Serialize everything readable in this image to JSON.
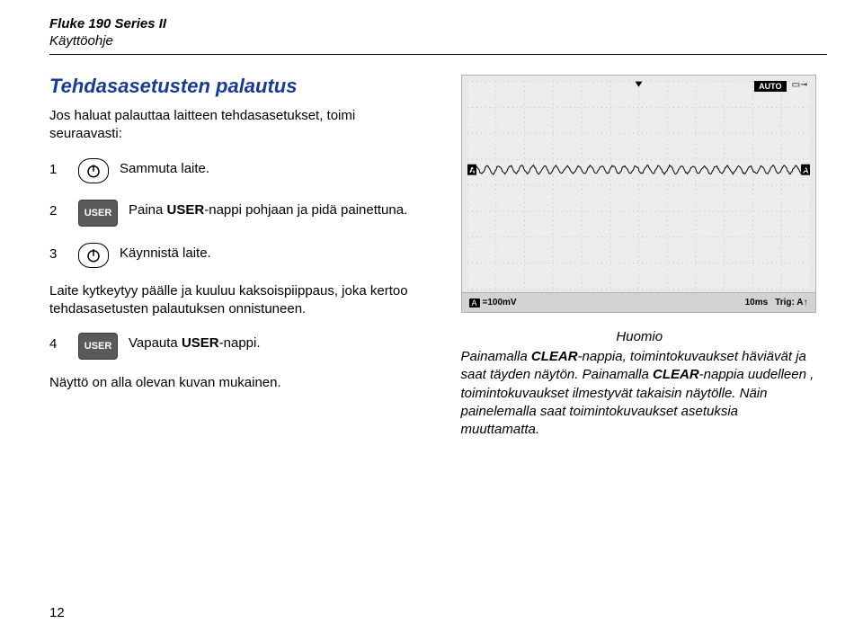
{
  "header": {
    "line1": "Fluke 190 Series II",
    "line2": "Käyttöohje"
  },
  "section_title": "Tehdasasetusten palautus",
  "intro": "Jos haluat palauttaa laitteen tehdasasetukset, toimi seuraavasti:",
  "steps": [
    {
      "num": "1",
      "btn": "power",
      "text": "Sammuta laite."
    },
    {
      "num": "2",
      "btn": "user",
      "text_pre": "Paina ",
      "bold": "USER",
      "text_post": "-nappi pohjaan ja pidä painettuna."
    },
    {
      "num": "3",
      "btn": "power",
      "text": "Käynnistä laite."
    }
  ],
  "para1": "Laite kytkeytyy päälle ja kuuluu kaksoispiippaus, joka kertoo tehdasasetusten palautuksen onnistuneen.",
  "step4": {
    "num": "4",
    "btn": "user",
    "text_pre": "Vapauta ",
    "bold": "USER",
    "text_post": "-nappi."
  },
  "para2": "Näyttö on alla olevan kuvan mukainen.",
  "user_label": "USER",
  "scope": {
    "auto_label": "AUTO",
    "ch_label": "A",
    "bottom": {
      "ch": "A",
      "vdiv": "=100mV",
      "tdiv": "10ms",
      "trig": "Trig: A↑"
    },
    "grid": {
      "cols": 12,
      "rows": 8,
      "color": "#bfbfbf",
      "bg": "#ededed"
    },
    "wave": {
      "color": "#000000",
      "baseline_row": 3.4,
      "amplitude_rows": 0.15,
      "cycles": 30
    }
  },
  "notice": {
    "title": "Huomio",
    "body_parts": [
      "Painamalla ",
      "CLEAR",
      "-nappia, toimintokuvaukset häviävät ja saat täyden näytön. Painamalla ",
      "CLEAR",
      "-nappia uudelleen , toimintokuvaukset ilmestyvät takaisin näytölle. Näin painelemalla saat toimintokuvaukset asetuksia muuttamatta."
    ]
  },
  "page_number": "12"
}
